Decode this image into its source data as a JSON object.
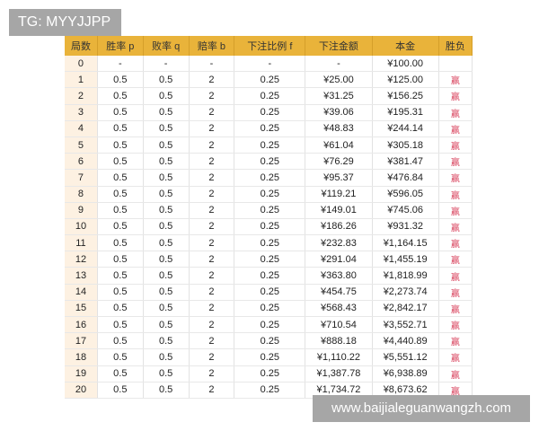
{
  "watermark_top": "TG: MYYJJPP",
  "watermark_bottom": "www.baijialeguanwangzh.com",
  "colors": {
    "header": "#e9b33a",
    "first_col": "#fdf1e2",
    "win": "#d9455f"
  },
  "table": {
    "headers": [
      "局数",
      "胜率 p",
      "败率 q",
      "赔率 b",
      "下注比例 f",
      "下注金额",
      "本金",
      "胜负"
    ],
    "rows": [
      [
        "0",
        "-",
        "-",
        "-",
        "-",
        "-",
        "¥100.00",
        ""
      ],
      [
        "1",
        "0.5",
        "0.5",
        "2",
        "0.25",
        "¥25.00",
        "¥125.00",
        "赢"
      ],
      [
        "2",
        "0.5",
        "0.5",
        "2",
        "0.25",
        "¥31.25",
        "¥156.25",
        "赢"
      ],
      [
        "3",
        "0.5",
        "0.5",
        "2",
        "0.25",
        "¥39.06",
        "¥195.31",
        "赢"
      ],
      [
        "4",
        "0.5",
        "0.5",
        "2",
        "0.25",
        "¥48.83",
        "¥244.14",
        "赢"
      ],
      [
        "5",
        "0.5",
        "0.5",
        "2",
        "0.25",
        "¥61.04",
        "¥305.18",
        "赢"
      ],
      [
        "6",
        "0.5",
        "0.5",
        "2",
        "0.25",
        "¥76.29",
        "¥381.47",
        "赢"
      ],
      [
        "7",
        "0.5",
        "0.5",
        "2",
        "0.25",
        "¥95.37",
        "¥476.84",
        "赢"
      ],
      [
        "8",
        "0.5",
        "0.5",
        "2",
        "0.25",
        "¥119.21",
        "¥596.05",
        "赢"
      ],
      [
        "9",
        "0.5",
        "0.5",
        "2",
        "0.25",
        "¥149.01",
        "¥745.06",
        "赢"
      ],
      [
        "10",
        "0.5",
        "0.5",
        "2",
        "0.25",
        "¥186.26",
        "¥931.32",
        "赢"
      ],
      [
        "11",
        "0.5",
        "0.5",
        "2",
        "0.25",
        "¥232.83",
        "¥1,164.15",
        "赢"
      ],
      [
        "12",
        "0.5",
        "0.5",
        "2",
        "0.25",
        "¥291.04",
        "¥1,455.19",
        "赢"
      ],
      [
        "13",
        "0.5",
        "0.5",
        "2",
        "0.25",
        "¥363.80",
        "¥1,818.99",
        "赢"
      ],
      [
        "14",
        "0.5",
        "0.5",
        "2",
        "0.25",
        "¥454.75",
        "¥2,273.74",
        "赢"
      ],
      [
        "15",
        "0.5",
        "0.5",
        "2",
        "0.25",
        "¥568.43",
        "¥2,842.17",
        "赢"
      ],
      [
        "16",
        "0.5",
        "0.5",
        "2",
        "0.25",
        "¥710.54",
        "¥3,552.71",
        "赢"
      ],
      [
        "17",
        "0.5",
        "0.5",
        "2",
        "0.25",
        "¥888.18",
        "¥4,440.89",
        "赢"
      ],
      [
        "18",
        "0.5",
        "0.5",
        "2",
        "0.25",
        "¥1,110.22",
        "¥5,551.12",
        "赢"
      ],
      [
        "19",
        "0.5",
        "0.5",
        "2",
        "0.25",
        "¥1,387.78",
        "¥6,938.89",
        "赢"
      ],
      [
        "20",
        "0.5",
        "0.5",
        "2",
        "0.25",
        "¥1,734.72",
        "¥8,673.62",
        "赢"
      ]
    ]
  }
}
